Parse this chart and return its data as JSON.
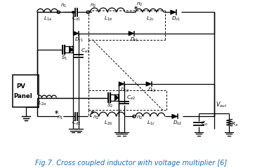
{
  "fig_width": 3.73,
  "fig_height": 2.4,
  "dpi": 100,
  "background_color": "#ffffff",
  "caption": "Fig.7. Cross coupled inductor with voltage multiplier [6]",
  "caption_color": "#1a6eb5",
  "caption_fontsize": 7.0
}
